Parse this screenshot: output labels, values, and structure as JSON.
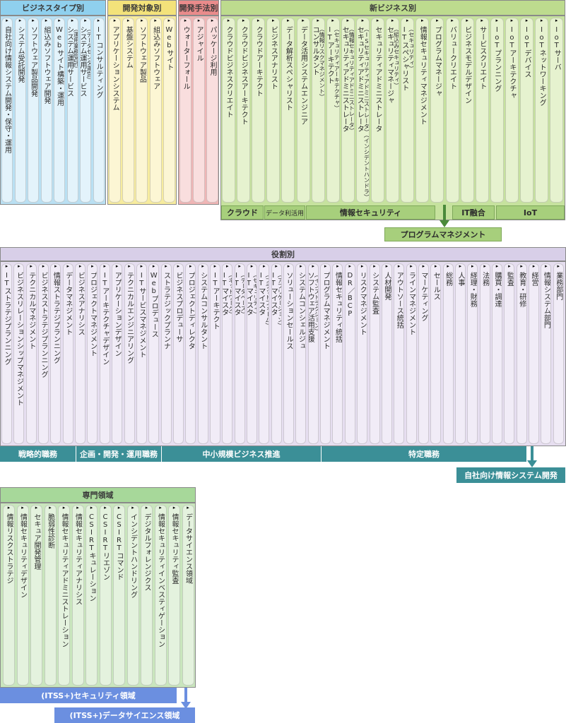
{
  "headers": {
    "business_type": "ビジネスタイプ別",
    "dev_target": "開発対象別",
    "dev_method": "開発手法別",
    "new_business": "新ビジネス別",
    "roles": "役割別",
    "specialty": "専門領域"
  },
  "business_type_items": [
    {
      "text": "自社向け情報システム開発・保守・運用"
    },
    {
      "text": "システム受託開発"
    },
    {
      "text": "ソフトウェア製品開発"
    },
    {
      "text": "組込みソフトウェア開発"
    },
    {
      "text": "Webサイト構築・運用"
    },
    {
      "text": "システム運用サービス",
      "sub": "（運用業務受託）"
    },
    {
      "text": "システム運用サービス",
      "sub": "（データセンタ運営）"
    },
    {
      "text": "ITコンサルティング"
    }
  ],
  "dev_target_items": [
    {
      "text": "アプリケーションシステム"
    },
    {
      "text": "基盤システム"
    },
    {
      "text": "ソフトウェア製品"
    },
    {
      "text": "組込みソフトウェア"
    },
    {
      "text": "Webサイト"
    }
  ],
  "dev_method_items": [
    {
      "text": "ウォーターフォール"
    },
    {
      "text": "アジャイル"
    },
    {
      "text": "パッケージ利用"
    }
  ],
  "new_business_items": [
    {
      "text": "クラウドビジネスクリエイト"
    },
    {
      "text": "クラウドビジネスアーキテクト"
    },
    {
      "text": "クラウドアーキテクト"
    },
    {
      "text": "ビジネスアナリスト"
    },
    {
      "text": "データ解析スペシャリスト"
    },
    {
      "text": "データ活用システムエンジニア"
    },
    {
      "text": "コンサルタント",
      "sub": "（情報リスクマネジメント）"
    },
    {
      "text": "ITアーキテクト",
      "sub": "（セキュリティアーキテクチャ）"
    },
    {
      "text": "セキュリティアドミニストレータ",
      "sub": "（情報セキュリティアドミニストレータ）"
    },
    {
      "text": "セキュリティアドミニストレータ",
      "sub": "（ISセキュリティアドミニストレータ）（インシデントハンドラ）"
    },
    {
      "text": "セキュリティアドミニストレータ"
    },
    {
      "text": "セキュリティマネージャ",
      "sub": "（組込みセキュリティ）"
    },
    {
      "text": "ITスペシャリスト",
      "sub": "（セキュリティ）"
    },
    {
      "text": "情報セキュリティマネジメント"
    },
    {
      "text": "プログラムマネージャ"
    },
    {
      "text": "バリュークリエイト"
    },
    {
      "text": "ビジネスモデルデザイン"
    },
    {
      "text": "サービスクリエイト"
    },
    {
      "text": "IoTプランニング"
    },
    {
      "text": "IoTアーキテクチャ"
    },
    {
      "text": "IoTデバイス"
    },
    {
      "text": "IoTネットワーキング"
    },
    {
      "text": "IoTサーバ"
    }
  ],
  "new_business_groups": {
    "cloud": "クラウド",
    "data": "データ利活用",
    "security": "情報セキュリティ",
    "it_fusion": "IT融合",
    "iot": "IoT",
    "program": "プログラムマネジメント"
  },
  "role_items": [
    {
      "text": "ITストラテジプランニング"
    },
    {
      "text": "ビジネスリレーションシップマネジメント"
    },
    {
      "text": "テクニカルマネジメント"
    },
    {
      "text": "ビジネスストラテジプランニング"
    },
    {
      "text": "情報ストラテジプランニング"
    },
    {
      "text": "データマネジメント"
    },
    {
      "text": "ビジネスアナリシス"
    },
    {
      "text": "プロジェクトマネジメント"
    },
    {
      "text": "ITアーキテクチャデザイン"
    },
    {
      "text": "アプリケーションデザイン"
    },
    {
      "text": "テクニカルエンジニアリング"
    },
    {
      "text": "ITサービスマネジメント"
    },
    {
      "text": "Webプロデュース"
    },
    {
      "text": "ストラテジックプランナ"
    },
    {
      "text": "ビジネスプロデューサ"
    },
    {
      "text": "プロジェクトディレクタ"
    },
    {
      "text": "システムコンサルタント"
    },
    {
      "text": "ITアーキテクト"
    },
    {
      "text": "ITマイスタ",
      "sub": "（ネットワーク）"
    },
    {
      "text": "ITマイスタ",
      "sub": "（データベース）"
    },
    {
      "text": "ITマイスタ",
      "sub": "（セキュリティ）"
    },
    {
      "text": "ITマイスタ",
      "sub": "（プラットフォーム）"
    },
    {
      "text": "ITマイスタ",
      "sub": "（アプリケーション）"
    },
    {
      "text": "ソリューションセールス"
    },
    {
      "text": "システムコンシェルジュ"
    },
    {
      "text": "ソフトウェア活用支援",
      "sub": "（インストラクション）"
    },
    {
      "text": "プログラムマネジメント"
    },
    {
      "text": "情報セキュリティ統括"
    },
    {
      "text": "DR／BCP"
    },
    {
      "text": "リスクマネジメント"
    },
    {
      "text": "システム監査"
    },
    {
      "text": "人材開発"
    },
    {
      "text": "アウトソース統括"
    },
    {
      "text": "ラインマネジメント"
    },
    {
      "text": "マーケティング"
    },
    {
      "text": "セールス"
    },
    {
      "text": "総務"
    },
    {
      "text": "人事"
    },
    {
      "text": "経理・財務"
    },
    {
      "text": "法務"
    },
    {
      "text": "購買・調達"
    },
    {
      "text": "監査"
    },
    {
      "text": "教育・研修"
    },
    {
      "text": "経営"
    },
    {
      "text": "情報システム部門"
    },
    {
      "text": "業務部門"
    }
  ],
  "role_groups": {
    "strategic": "戦略的職務",
    "planning": "企画・開発・運用職務",
    "smb": "中小規模ビジネス推進",
    "specific": "特定職務",
    "inhouse": "自社向け情報システム開発"
  },
  "specialty_items": [
    {
      "text": "情報リスクストラテジ"
    },
    {
      "text": "情報セキュリティデザイン"
    },
    {
      "text": "セキュア開発管理"
    },
    {
      "text": "脆弱性診断"
    },
    {
      "text": "情報セキュリティアドミニストレーション"
    },
    {
      "text": "情報セキュリティアナリシス"
    },
    {
      "text": "CSIRTキュレーション"
    },
    {
      "text": "CSIRTリエゾン"
    },
    {
      "text": "CSIRTコマンド"
    },
    {
      "text": "インシデントハンドリング"
    },
    {
      "text": "デジタルフォレンジクス"
    },
    {
      "text": "情報セキュリティインベスティゲーション"
    },
    {
      "text": "情報セキュリティ監査"
    },
    {
      "text": "データサイエンス領域"
    }
  ],
  "specialty_groups": {
    "security": "(ITSS+)セキュリティ領域",
    "data_science": "(ITSS+)データサイエンス領域"
  },
  "colors": {
    "business_type": "#cfe9f6",
    "dev_target": "#fbf1b8",
    "dev_method": "#f6c9c9",
    "new_business": "#d8ebb4",
    "roles": "#e3dcee",
    "specialty": "#cfe8c4",
    "teal": "#3b8f97",
    "blue": "#6b8fe0"
  }
}
